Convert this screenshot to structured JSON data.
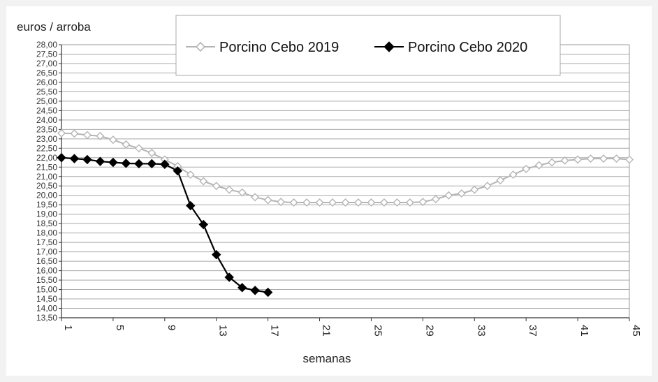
{
  "chart_data": {
    "type": "line",
    "title": "",
    "ylabel": "euros / arroba",
    "xlabel": "semanas",
    "xlim": [
      1,
      45
    ],
    "ylim": [
      13.5,
      28.0
    ],
    "y_ticks": [
      "13,50",
      "14,00",
      "14,50",
      "15,00",
      "15,50",
      "16,00",
      "16,50",
      "17,00",
      "17,50",
      "18,00",
      "18,50",
      "19,00",
      "19,50",
      "20,00",
      "20,50",
      "21,00",
      "21,50",
      "22,00",
      "22,50",
      "23,00",
      "23,50",
      "24,00",
      "24,50",
      "25,00",
      "25,50",
      "26,00",
      "26,50",
      "27,00",
      "27,50",
      "28,00"
    ],
    "x_ticks": [
      "1",
      "5",
      "9",
      "13",
      "17",
      "21",
      "25",
      "29",
      "33",
      "37",
      "41",
      "45"
    ],
    "grid": true,
    "legend_position": "top-center",
    "series": [
      {
        "name": "Porcino Cebo 2019",
        "color": "#b5b5b5",
        "marker": "open-diamond",
        "x": [
          1,
          2,
          3,
          4,
          5,
          6,
          7,
          8,
          9,
          10,
          11,
          12,
          13,
          14,
          15,
          16,
          17,
          18,
          19,
          20,
          21,
          22,
          23,
          24,
          25,
          26,
          27,
          28,
          29,
          30,
          31,
          32,
          33,
          34,
          35,
          36,
          37,
          38,
          39,
          40,
          41,
          42,
          43,
          44,
          45
        ],
        "values": [
          23.3,
          23.28,
          23.2,
          23.15,
          22.95,
          22.7,
          22.5,
          22.25,
          21.9,
          21.55,
          21.1,
          20.75,
          20.5,
          20.3,
          20.15,
          19.9,
          19.75,
          19.65,
          19.62,
          19.62,
          19.62,
          19.62,
          19.62,
          19.62,
          19.62,
          19.62,
          19.62,
          19.62,
          19.65,
          19.8,
          20.0,
          20.1,
          20.3,
          20.5,
          20.8,
          21.1,
          21.4,
          21.6,
          21.75,
          21.85,
          21.9,
          21.95,
          21.95,
          21.95,
          21.9
        ]
      },
      {
        "name": "Porcino Cebo 2020",
        "color": "#000000",
        "marker": "filled-diamond",
        "x": [
          1,
          2,
          3,
          4,
          5,
          6,
          7,
          8,
          9,
          10,
          11,
          12,
          13,
          14,
          15,
          16,
          17
        ],
        "values": [
          22.0,
          21.95,
          21.9,
          21.8,
          21.75,
          21.7,
          21.68,
          21.68,
          21.65,
          21.3,
          19.45,
          18.45,
          16.85,
          15.65,
          15.1,
          14.95,
          14.85
        ]
      }
    ]
  }
}
